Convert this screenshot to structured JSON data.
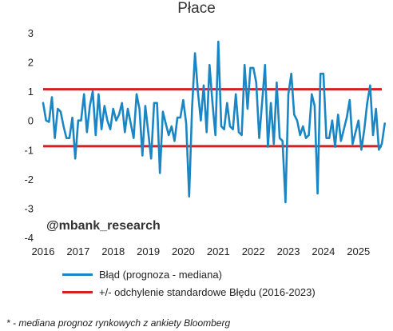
{
  "chart_data": {
    "type": "line",
    "title": "Płace",
    "watermark": "@mbank_research",
    "xlabel": "",
    "ylabel": "",
    "x_start": "2016-01",
    "x_ticks": [
      "2016",
      "2017",
      "2018",
      "2019",
      "2020",
      "2021",
      "2022",
      "2023",
      "2024",
      "2025"
    ],
    "xlim": [
      "2016-01",
      "2025-09"
    ],
    "ylim": [
      -4,
      3
    ],
    "y_ticks": [
      -4,
      -3,
      -2,
      -1,
      0,
      1,
      2,
      3
    ],
    "grid": false,
    "series": [
      {
        "name": "Błąd (prognoza - mediana)",
        "color": "#1a86c4",
        "type": "line",
        "values": [
          0.6,
          0.0,
          -0.05,
          0.8,
          -0.6,
          0.4,
          0.3,
          -0.2,
          -0.6,
          -0.6,
          0.1,
          -1.3,
          0.0,
          0.0,
          0.9,
          -0.4,
          0.5,
          1.0,
          -0.5,
          0.9,
          -0.3,
          0.5,
          0.0,
          -0.3,
          0.4,
          0.0,
          0.2,
          0.6,
          -0.4,
          0.4,
          -0.1,
          -0.6,
          0.9,
          0.4,
          -1.2,
          0.5,
          -0.4,
          -1.3,
          0.6,
          0.6,
          -1.8,
          0.3,
          -0.1,
          -0.5,
          -0.2,
          -0.7,
          0.1,
          0.1,
          0.7,
          -0.1,
          -2.6,
          0.4,
          2.3,
          1.0,
          0.0,
          1.2,
          -0.4,
          1.9,
          0.6,
          -0.5,
          2.7,
          -0.2,
          -0.3,
          0.6,
          -0.2,
          -0.3,
          0.9,
          -0.4,
          -0.5,
          1.9,
          0.4,
          1.8,
          1.8,
          1.3,
          -0.6,
          0.6,
          1.9,
          -0.9,
          0.6,
          -0.8,
          1.3,
          -0.6,
          -0.7,
          -2.8,
          0.9,
          1.6,
          0.2,
          0.0,
          -0.5,
          -0.2,
          -0.6,
          -0.5,
          0.9,
          0.5,
          -2.5,
          1.6,
          1.6,
          -0.6,
          -0.6,
          0.0,
          -0.9,
          0.2,
          -0.7,
          -0.3,
          0.1,
          0.7,
          -0.8,
          -0.4,
          0.0,
          -1.0,
          -0.3,
          0.6,
          1.2,
          -0.5,
          0.4,
          -1.0,
          -0.8,
          -0.1
        ]
      },
      {
        "name": "+/- odchylenie standardowe Błędu (2016-2023)",
        "color": "#d42020",
        "type": "hline",
        "levels": [
          1.07,
          -0.88
        ]
      }
    ],
    "legend_position": "bottom"
  },
  "footnote": "* - mediana prognoz rynkowych z ankiety Bloomberg"
}
